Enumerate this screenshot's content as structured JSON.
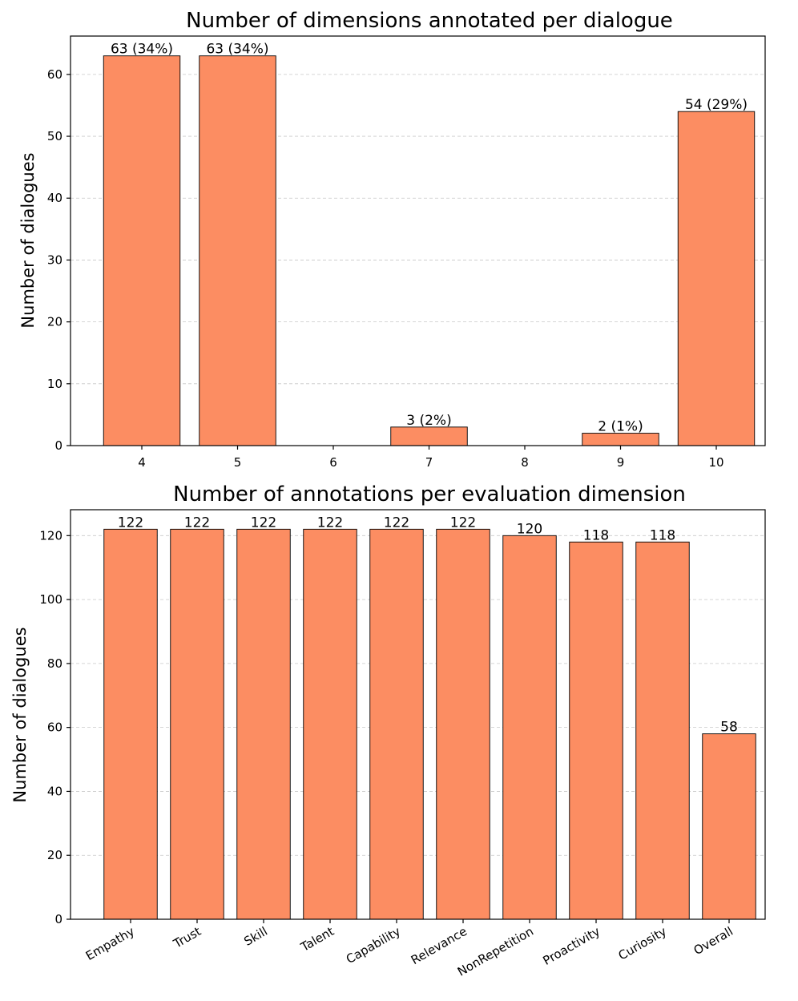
{
  "chart_data": [
    {
      "type": "bar",
      "title": "Number of dimensions annotated per dialogue",
      "xlabel": "",
      "ylabel": "Number of dialogues",
      "categories": [
        "4",
        "5",
        "6",
        "7",
        "8",
        "9",
        "10"
      ],
      "values": [
        63,
        63,
        0,
        3,
        0,
        2,
        54
      ],
      "data_labels": [
        "63 (34%)",
        "63 (34%)",
        "",
        "3 (2%)",
        "",
        "2 (1%)",
        "54 (29%)"
      ],
      "yticks": [
        0,
        10,
        20,
        30,
        40,
        50,
        60
      ],
      "ylim": [
        0,
        66.2
      ],
      "grid": true,
      "bar_color": "#fc8d62"
    },
    {
      "type": "bar",
      "title": "Number of annotations per evaluation dimension",
      "xlabel": "",
      "ylabel": "Number of dialogues",
      "categories": [
        "Empathy",
        "Trust",
        "Skill",
        "Talent",
        "Capability",
        "Relevance",
        "NonRepetition",
        "Proactivity",
        "Curiosity",
        "Overall"
      ],
      "values": [
        122,
        122,
        122,
        122,
        122,
        122,
        120,
        118,
        118,
        58
      ],
      "data_labels": [
        "122",
        "122",
        "122",
        "122",
        "122",
        "122",
        "120",
        "118",
        "118",
        "58"
      ],
      "yticks": [
        0,
        20,
        40,
        60,
        80,
        100,
        120
      ],
      "ylim": [
        0,
        128.1
      ],
      "grid": true,
      "bar_color": "#fc8d62"
    }
  ]
}
